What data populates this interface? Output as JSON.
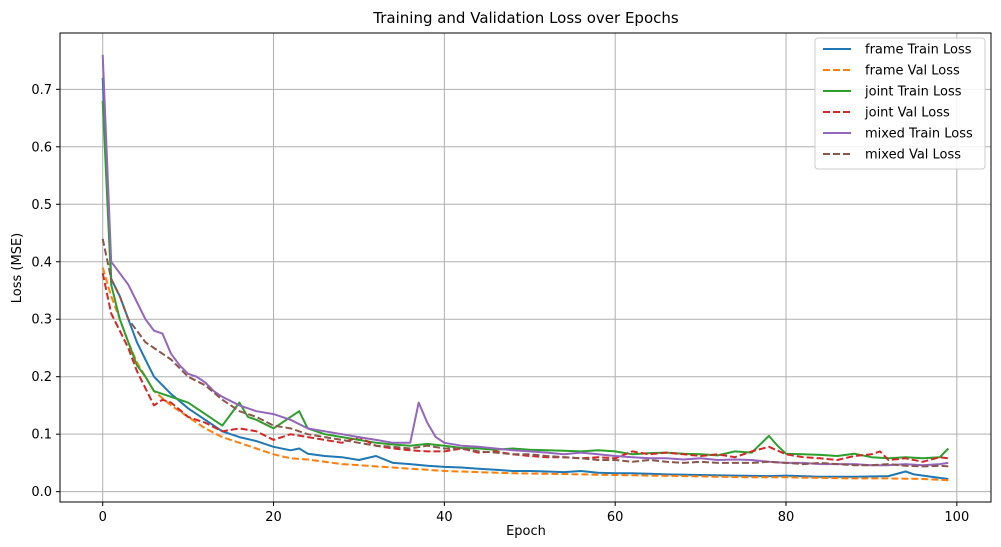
{
  "chart_data": {
    "type": "line",
    "title": "Training and Validation Loss over Epochs",
    "xlabel": "Epoch",
    "ylabel": "Loss (MSE)",
    "xlim": [
      -5,
      104
    ],
    "ylim": [
      -0.018,
      0.798
    ],
    "x_ticks": [
      "0",
      "20",
      "40",
      "60",
      "80",
      "100"
    ],
    "y_ticks": [
      "0.0",
      "0.1",
      "0.2",
      "0.3",
      "0.4",
      "0.5",
      "0.6",
      "0.7"
    ],
    "grid": true,
    "legend_position": "top-right",
    "series": [
      {
        "name": "frame Train Loss",
        "color": "#1f77b4",
        "style": "solid",
        "points": [
          [
            0,
            0.72
          ],
          [
            1,
            0.37
          ],
          [
            2,
            0.34
          ],
          [
            3,
            0.3
          ],
          [
            4,
            0.26
          ],
          [
            5,
            0.23
          ],
          [
            6,
            0.2
          ],
          [
            8,
            0.17
          ],
          [
            10,
            0.145
          ],
          [
            12,
            0.125
          ],
          [
            14,
            0.105
          ],
          [
            16,
            0.095
          ],
          [
            18,
            0.088
          ],
          [
            20,
            0.078
          ],
          [
            22,
            0.072
          ],
          [
            23,
            0.075
          ],
          [
            24,
            0.066
          ],
          [
            26,
            0.062
          ],
          [
            28,
            0.06
          ],
          [
            30,
            0.055
          ],
          [
            32,
            0.062
          ],
          [
            34,
            0.05
          ],
          [
            36,
            0.048
          ],
          [
            38,
            0.045
          ],
          [
            40,
            0.043
          ],
          [
            42,
            0.042
          ],
          [
            44,
            0.04
          ],
          [
            46,
            0.038
          ],
          [
            48,
            0.036
          ],
          [
            50,
            0.036
          ],
          [
            52,
            0.035
          ],
          [
            54,
            0.034
          ],
          [
            56,
            0.036
          ],
          [
            58,
            0.033
          ],
          [
            60,
            0.032
          ],
          [
            62,
            0.032
          ],
          [
            64,
            0.031
          ],
          [
            66,
            0.03
          ],
          [
            70,
            0.029
          ],
          [
            74,
            0.028
          ],
          [
            78,
            0.027
          ],
          [
            80,
            0.028
          ],
          [
            84,
            0.026
          ],
          [
            88,
            0.026
          ],
          [
            92,
            0.027
          ],
          [
            94,
            0.035
          ],
          [
            95,
            0.03
          ],
          [
            97,
            0.026
          ],
          [
            99,
            0.022
          ]
        ]
      },
      {
        "name": "frame Val Loss",
        "color": "#ff7f0e",
        "style": "dashed",
        "points": [
          [
            0,
            0.39
          ],
          [
            1,
            0.34
          ],
          [
            2,
            0.3
          ],
          [
            3,
            0.26
          ],
          [
            4,
            0.225
          ],
          [
            5,
            0.2
          ],
          [
            6,
            0.175
          ],
          [
            8,
            0.15
          ],
          [
            10,
            0.13
          ],
          [
            12,
            0.11
          ],
          [
            14,
            0.095
          ],
          [
            16,
            0.085
          ],
          [
            18,
            0.075
          ],
          [
            20,
            0.065
          ],
          [
            22,
            0.058
          ],
          [
            24,
            0.056
          ],
          [
            26,
            0.052
          ],
          [
            28,
            0.048
          ],
          [
            30,
            0.046
          ],
          [
            32,
            0.044
          ],
          [
            34,
            0.042
          ],
          [
            36,
            0.04
          ],
          [
            38,
            0.038
          ],
          [
            40,
            0.036
          ],
          [
            44,
            0.034
          ],
          [
            48,
            0.032
          ],
          [
            52,
            0.031
          ],
          [
            56,
            0.03
          ],
          [
            60,
            0.029
          ],
          [
            64,
            0.028
          ],
          [
            68,
            0.027
          ],
          [
            72,
            0.026
          ],
          [
            76,
            0.025
          ],
          [
            80,
            0.025
          ],
          [
            84,
            0.024
          ],
          [
            88,
            0.023
          ],
          [
            92,
            0.023
          ],
          [
            96,
            0.022
          ],
          [
            99,
            0.02
          ]
        ]
      },
      {
        "name": "joint Train Loss",
        "color": "#2ca02c",
        "style": "solid",
        "points": [
          [
            0,
            0.68
          ],
          [
            1,
            0.36
          ],
          [
            2,
            0.3
          ],
          [
            3,
            0.26
          ],
          [
            4,
            0.22
          ],
          [
            5,
            0.2
          ],
          [
            6,
            0.175
          ],
          [
            7,
            0.17
          ],
          [
            8,
            0.165
          ],
          [
            10,
            0.155
          ],
          [
            12,
            0.135
          ],
          [
            14,
            0.115
          ],
          [
            16,
            0.155
          ],
          [
            17,
            0.13
          ],
          [
            18,
            0.125
          ],
          [
            20,
            0.11
          ],
          [
            22,
            0.13
          ],
          [
            23,
            0.14
          ],
          [
            24,
            0.11
          ],
          [
            26,
            0.1
          ],
          [
            28,
            0.095
          ],
          [
            30,
            0.09
          ],
          [
            32,
            0.085
          ],
          [
            34,
            0.082
          ],
          [
            36,
            0.08
          ],
          [
            38,
            0.083
          ],
          [
            40,
            0.08
          ],
          [
            42,
            0.076
          ],
          [
            44,
            0.075
          ],
          [
            46,
            0.073
          ],
          [
            48,
            0.075
          ],
          [
            50,
            0.073
          ],
          [
            52,
            0.072
          ],
          [
            54,
            0.071
          ],
          [
            56,
            0.07
          ],
          [
            58,
            0.072
          ],
          [
            60,
            0.07
          ],
          [
            62,
            0.065
          ],
          [
            64,
            0.067
          ],
          [
            66,
            0.068
          ],
          [
            68,
            0.066
          ],
          [
            70,
            0.065
          ],
          [
            72,
            0.063
          ],
          [
            74,
            0.07
          ],
          [
            76,
            0.068
          ],
          [
            78,
            0.097
          ],
          [
            79,
            0.08
          ],
          [
            80,
            0.066
          ],
          [
            82,
            0.065
          ],
          [
            84,
            0.064
          ],
          [
            86,
            0.062
          ],
          [
            88,
            0.066
          ],
          [
            90,
            0.06
          ],
          [
            92,
            0.058
          ],
          [
            94,
            0.06
          ],
          [
            96,
            0.058
          ],
          [
            98,
            0.06
          ],
          [
            99,
            0.075
          ]
        ]
      },
      {
        "name": "joint Val Loss",
        "color": "#d62728",
        "style": "dashed",
        "points": [
          [
            0,
            0.38
          ],
          [
            1,
            0.31
          ],
          [
            2,
            0.28
          ],
          [
            3,
            0.25
          ],
          [
            4,
            0.21
          ],
          [
            5,
            0.18
          ],
          [
            6,
            0.15
          ],
          [
            7,
            0.16
          ],
          [
            8,
            0.155
          ],
          [
            10,
            0.13
          ],
          [
            12,
            0.12
          ],
          [
            14,
            0.105
          ],
          [
            16,
            0.11
          ],
          [
            18,
            0.105
          ],
          [
            20,
            0.09
          ],
          [
            22,
            0.1
          ],
          [
            24,
            0.095
          ],
          [
            26,
            0.09
          ],
          [
            28,
            0.085
          ],
          [
            30,
            0.095
          ],
          [
            32,
            0.08
          ],
          [
            34,
            0.075
          ],
          [
            36,
            0.072
          ],
          [
            38,
            0.07
          ],
          [
            40,
            0.07
          ],
          [
            42,
            0.075
          ],
          [
            44,
            0.068
          ],
          [
            46,
            0.07
          ],
          [
            48,
            0.065
          ],
          [
            50,
            0.062
          ],
          [
            52,
            0.06
          ],
          [
            54,
            0.06
          ],
          [
            56,
            0.058
          ],
          [
            58,
            0.06
          ],
          [
            60,
            0.058
          ],
          [
            62,
            0.07
          ],
          [
            64,
            0.065
          ],
          [
            66,
            0.068
          ],
          [
            68,
            0.065
          ],
          [
            70,
            0.062
          ],
          [
            72,
            0.065
          ],
          [
            74,
            0.06
          ],
          [
            76,
            0.07
          ],
          [
            78,
            0.078
          ],
          [
            80,
            0.065
          ],
          [
            82,
            0.06
          ],
          [
            84,
            0.058
          ],
          [
            86,
            0.055
          ],
          [
            88,
            0.062
          ],
          [
            90,
            0.065
          ],
          [
            91,
            0.07
          ],
          [
            92,
            0.055
          ],
          [
            94,
            0.058
          ],
          [
            96,
            0.052
          ],
          [
            98,
            0.06
          ],
          [
            99,
            0.058
          ]
        ]
      },
      {
        "name": "mixed Train Loss",
        "color": "#9467bd",
        "style": "solid",
        "points": [
          [
            0,
            0.76
          ],
          [
            1,
            0.4
          ],
          [
            2,
            0.38
          ],
          [
            3,
            0.36
          ],
          [
            4,
            0.33
          ],
          [
            5,
            0.3
          ],
          [
            6,
            0.28
          ],
          [
            7,
            0.275
          ],
          [
            8,
            0.24
          ],
          [
            9,
            0.22
          ],
          [
            10,
            0.205
          ],
          [
            11,
            0.2
          ],
          [
            12,
            0.19
          ],
          [
            13,
            0.175
          ],
          [
            14,
            0.165
          ],
          [
            16,
            0.15
          ],
          [
            18,
            0.14
          ],
          [
            20,
            0.135
          ],
          [
            22,
            0.125
          ],
          [
            24,
            0.11
          ],
          [
            26,
            0.105
          ],
          [
            28,
            0.1
          ],
          [
            30,
            0.095
          ],
          [
            32,
            0.09
          ],
          [
            34,
            0.085
          ],
          [
            36,
            0.085
          ],
          [
            37,
            0.155
          ],
          [
            38,
            0.12
          ],
          [
            39,
            0.095
          ],
          [
            40,
            0.085
          ],
          [
            42,
            0.08
          ],
          [
            44,
            0.078
          ],
          [
            46,
            0.075
          ],
          [
            48,
            0.072
          ],
          [
            50,
            0.07
          ],
          [
            52,
            0.068
          ],
          [
            54,
            0.065
          ],
          [
            56,
            0.068
          ],
          [
            58,
            0.065
          ],
          [
            60,
            0.062
          ],
          [
            62,
            0.06
          ],
          [
            64,
            0.058
          ],
          [
            66,
            0.058
          ],
          [
            68,
            0.056
          ],
          [
            70,
            0.058
          ],
          [
            72,
            0.055
          ],
          [
            74,
            0.056
          ],
          [
            76,
            0.055
          ],
          [
            78,
            0.052
          ],
          [
            80,
            0.05
          ],
          [
            82,
            0.05
          ],
          [
            84,
            0.048
          ],
          [
            86,
            0.048
          ],
          [
            88,
            0.048
          ],
          [
            90,
            0.046
          ],
          [
            92,
            0.046
          ],
          [
            94,
            0.048
          ],
          [
            96,
            0.046
          ],
          [
            98,
            0.048
          ],
          [
            99,
            0.05
          ]
        ]
      },
      {
        "name": "mixed Val Loss",
        "color": "#8c564b",
        "style": "dashed",
        "points": [
          [
            0,
            0.44
          ],
          [
            1,
            0.37
          ],
          [
            2,
            0.34
          ],
          [
            3,
            0.3
          ],
          [
            4,
            0.28
          ],
          [
            5,
            0.26
          ],
          [
            6,
            0.25
          ],
          [
            8,
            0.23
          ],
          [
            10,
            0.2
          ],
          [
            12,
            0.185
          ],
          [
            14,
            0.16
          ],
          [
            16,
            0.14
          ],
          [
            18,
            0.13
          ],
          [
            20,
            0.115
          ],
          [
            22,
            0.11
          ],
          [
            24,
            0.1
          ],
          [
            26,
            0.095
          ],
          [
            28,
            0.09
          ],
          [
            30,
            0.085
          ],
          [
            32,
            0.08
          ],
          [
            34,
            0.078
          ],
          [
            36,
            0.075
          ],
          [
            38,
            0.08
          ],
          [
            40,
            0.075
          ],
          [
            42,
            0.075
          ],
          [
            44,
            0.07
          ],
          [
            46,
            0.068
          ],
          [
            48,
            0.065
          ],
          [
            50,
            0.065
          ],
          [
            52,
            0.062
          ],
          [
            54,
            0.06
          ],
          [
            56,
            0.058
          ],
          [
            58,
            0.055
          ],
          [
            60,
            0.055
          ],
          [
            62,
            0.052
          ],
          [
            64,
            0.055
          ],
          [
            66,
            0.052
          ],
          [
            68,
            0.05
          ],
          [
            70,
            0.052
          ],
          [
            72,
            0.05
          ],
          [
            74,
            0.05
          ],
          [
            76,
            0.05
          ],
          [
            78,
            0.052
          ],
          [
            80,
            0.05
          ],
          [
            82,
            0.048
          ],
          [
            84,
            0.05
          ],
          [
            86,
            0.048
          ],
          [
            88,
            0.046
          ],
          [
            90,
            0.046
          ],
          [
            92,
            0.048
          ],
          [
            94,
            0.045
          ],
          [
            96,
            0.044
          ],
          [
            98,
            0.045
          ],
          [
            99,
            0.044
          ]
        ]
      }
    ]
  }
}
